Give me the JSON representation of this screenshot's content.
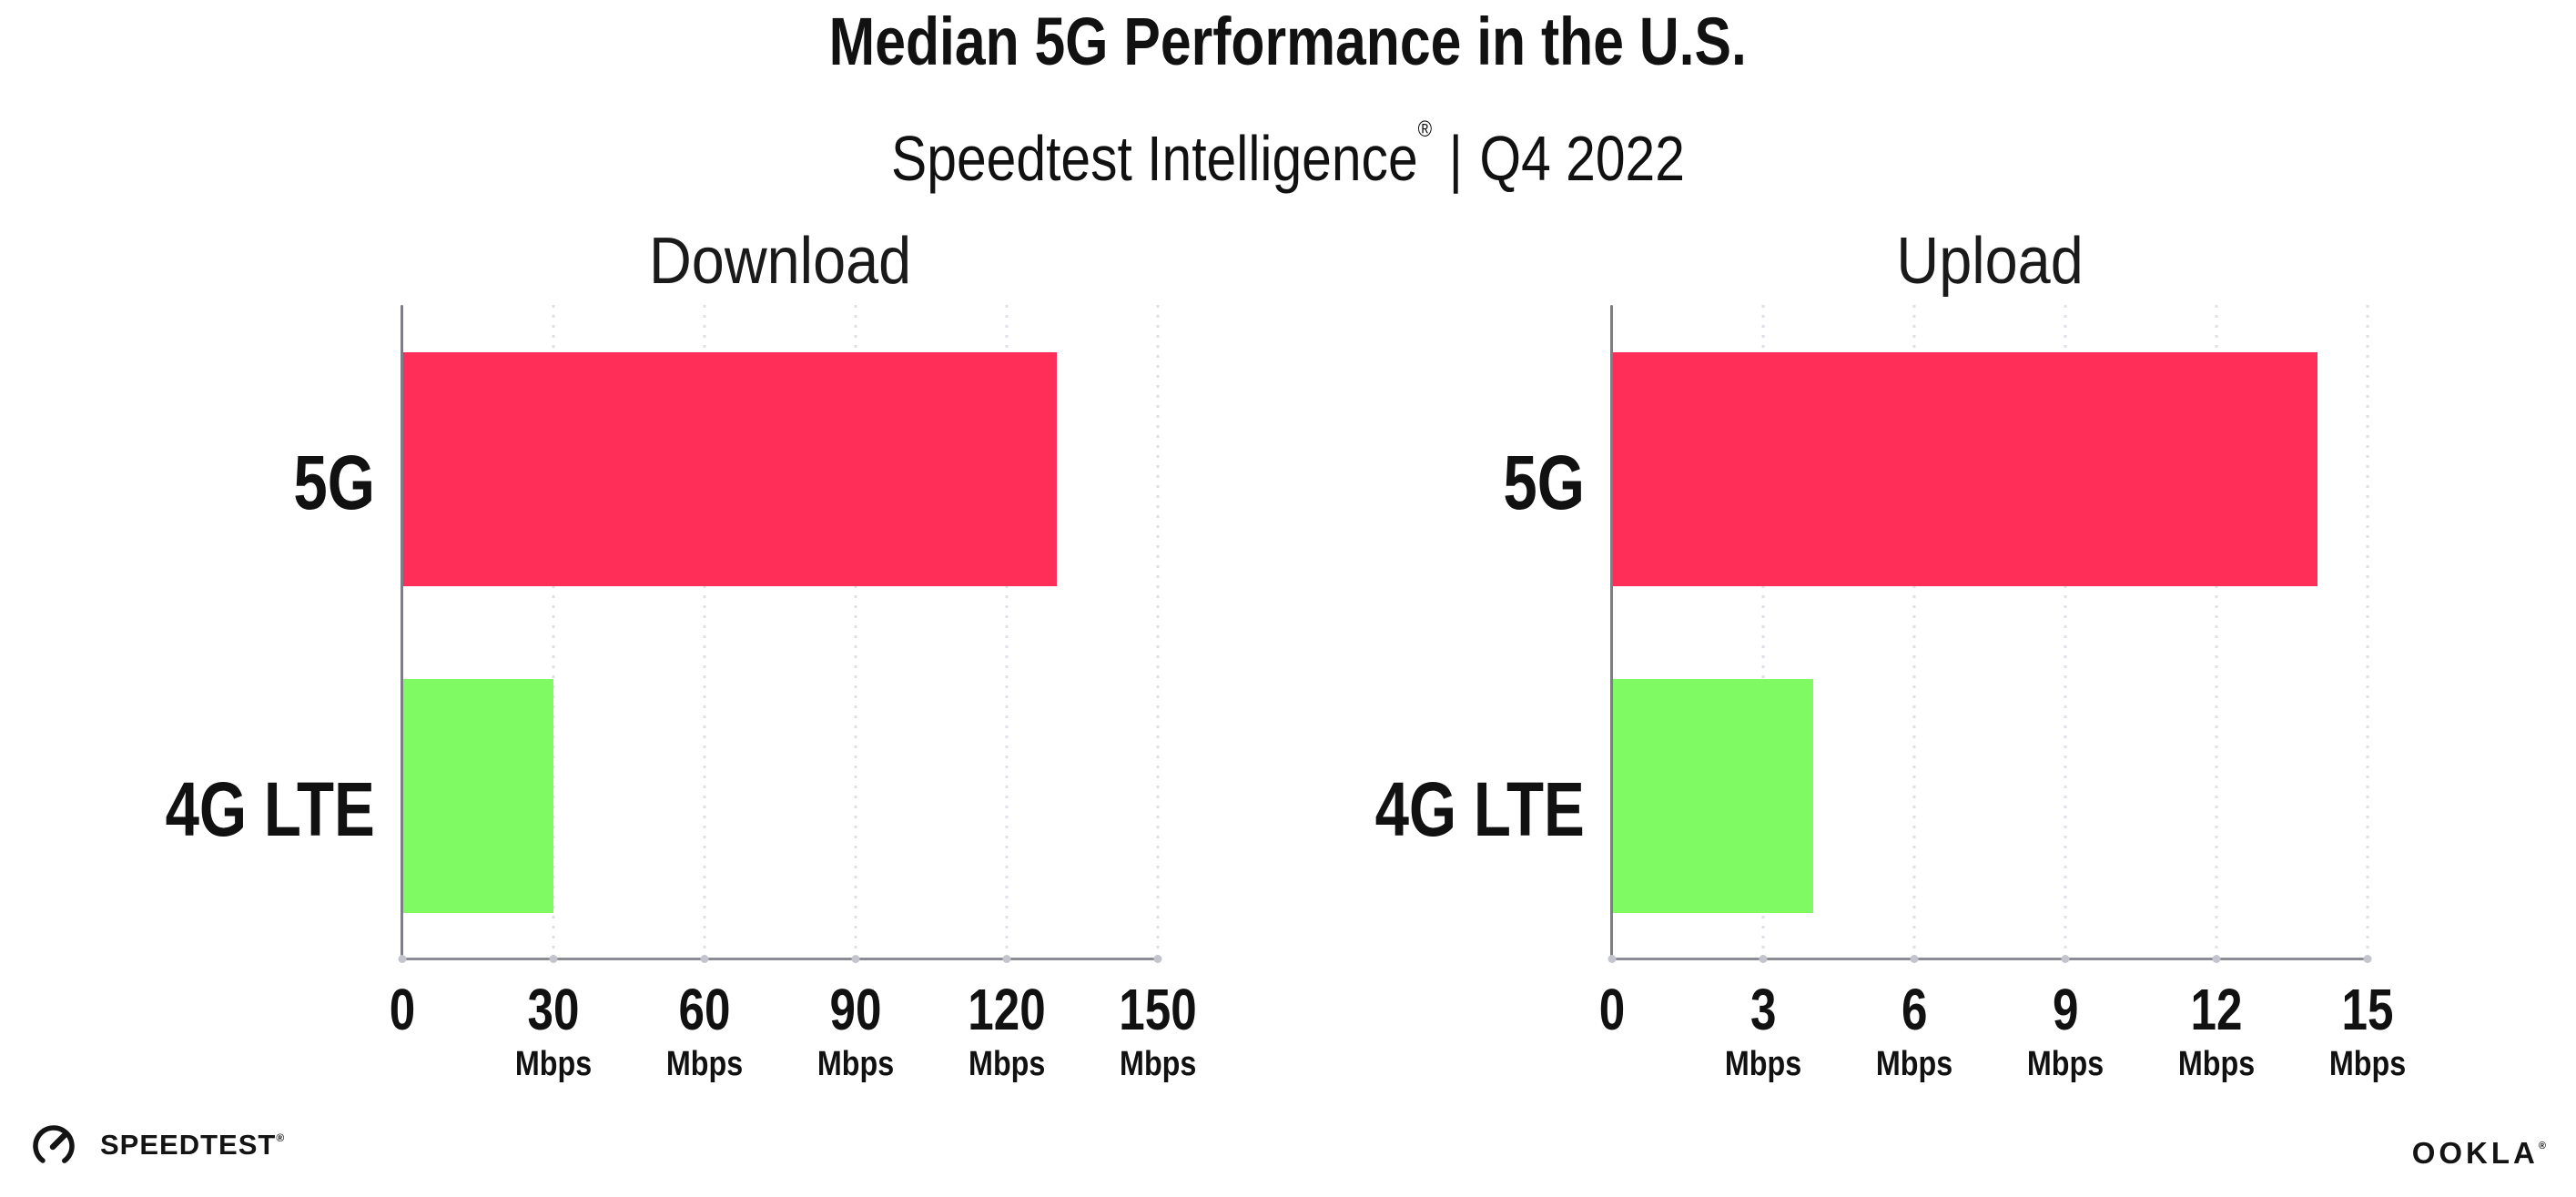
{
  "header": {
    "title": "Median 5G Performance in the U.S.",
    "subtitle_brand": "Speedtest Intelligence",
    "subtitle_reg": "®",
    "subtitle_separator": "|",
    "subtitle_period": "Q4 2022"
  },
  "chart_data": [
    {
      "type": "bar",
      "orientation": "horizontal",
      "title": "Download",
      "categories": [
        "5G",
        "4G LTE"
      ],
      "values": [
        130,
        30
      ],
      "unit": "Mbps",
      "xlim": [
        0,
        150
      ],
      "xticks": [
        0,
        30,
        60,
        90,
        120,
        150
      ],
      "bar_colors": [
        "#ff2e58",
        "#80fa63"
      ],
      "grid": "dotted-vertical",
      "legend": "none"
    },
    {
      "type": "bar",
      "orientation": "horizontal",
      "title": "Upload",
      "categories": [
        "5G",
        "4G LTE"
      ],
      "values": [
        14,
        4
      ],
      "unit": "Mbps",
      "xlim": [
        0,
        15
      ],
      "xticks": [
        0,
        3,
        6,
        9,
        12,
        15
      ],
      "bar_colors": [
        "#ff2e58",
        "#80fa63"
      ],
      "grid": "dotted-vertical",
      "legend": "none"
    }
  ],
  "footer": {
    "speedtest_logo_text": "SPEEDTEST",
    "speedtest_reg": "®",
    "ookla_logo_text": "OOKLA",
    "ookla_reg": "®"
  },
  "style": {
    "bar_5g_color": "#ff2e58",
    "bar_4g_color": "#80fa63",
    "grid_dot_color": "#dfdfea",
    "axis_color": "#8b8b93",
    "text_color": "#111111",
    "background": "#ffffff"
  }
}
